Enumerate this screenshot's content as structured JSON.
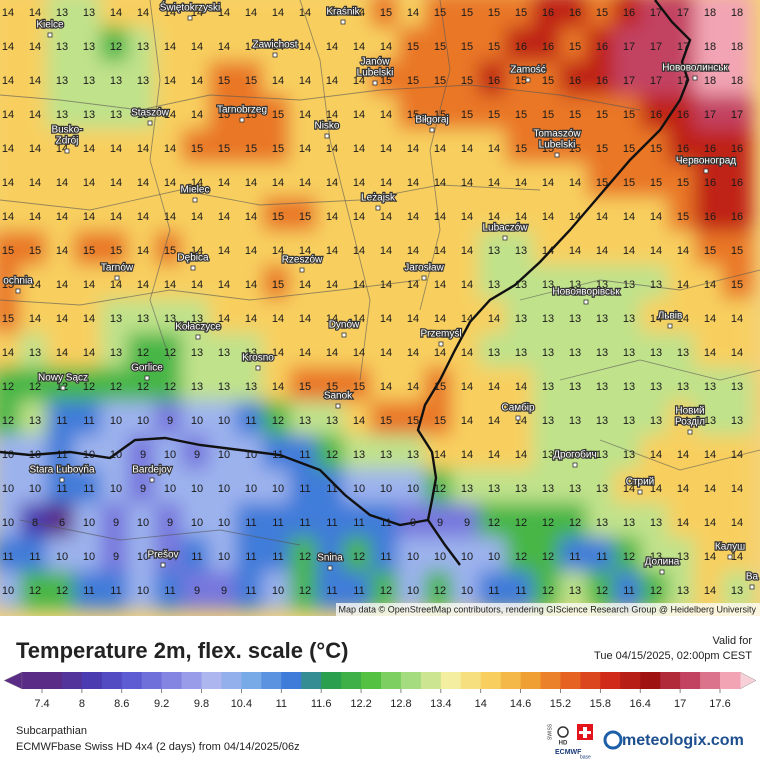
{
  "map": {
    "attribution": "Map data © OpenStreetMap contributors, rendering GIScience Research Group @ Heidelberg University",
    "grid": [
      [
        14,
        14,
        13,
        13,
        14,
        14,
        14,
        14,
        14,
        14,
        14,
        14,
        14,
        14,
        15,
        14,
        15,
        15,
        15,
        15,
        16,
        16,
        15,
        16,
        17,
        17,
        18,
        18
      ],
      [
        14,
        14,
        13,
        13,
        12,
        13,
        14,
        14,
        14,
        14,
        14,
        14,
        14,
        14,
        14,
        15,
        15,
        15,
        15,
        16,
        16,
        15,
        16,
        17,
        17,
        17,
        18,
        18
      ],
      [
        14,
        14,
        13,
        13,
        13,
        13,
        14,
        14,
        15,
        15,
        14,
        14,
        14,
        14,
        15,
        15,
        15,
        15,
        16,
        15,
        15,
        16,
        16,
        17,
        17,
        17,
        18,
        18
      ],
      [
        14,
        14,
        13,
        13,
        13,
        13,
        14,
        14,
        15,
        15,
        15,
        14,
        14,
        14,
        14,
        15,
        15,
        15,
        15,
        15,
        15,
        15,
        15,
        15,
        16,
        16,
        17,
        17
      ],
      [
        14,
        14,
        14,
        14,
        14,
        14,
        14,
        15,
        15,
        15,
        15,
        14,
        14,
        14,
        14,
        14,
        14,
        14,
        14,
        15,
        15,
        15,
        15,
        15,
        15,
        16,
        16,
        16
      ],
      [
        14,
        14,
        14,
        14,
        14,
        14,
        14,
        14,
        14,
        14,
        14,
        14,
        14,
        14,
        14,
        14,
        14,
        14,
        14,
        14,
        14,
        14,
        15,
        15,
        15,
        15,
        16,
        16
      ],
      [
        14,
        14,
        14,
        14,
        14,
        14,
        14,
        14,
        14,
        14,
        15,
        15,
        14,
        14,
        14,
        14,
        14,
        14,
        14,
        14,
        14,
        14,
        14,
        14,
        14,
        15,
        16,
        16
      ],
      [
        15,
        15,
        14,
        15,
        15,
        14,
        15,
        14,
        14,
        14,
        14,
        14,
        14,
        14,
        14,
        14,
        14,
        14,
        13,
        13,
        14,
        14,
        14,
        14,
        14,
        14,
        15,
        15
      ],
      [
        15,
        14,
        14,
        14,
        14,
        14,
        14,
        14,
        14,
        14,
        15,
        14,
        14,
        14,
        14,
        14,
        14,
        14,
        13,
        13,
        13,
        13,
        13,
        13,
        13,
        14,
        14,
        15
      ],
      [
        15,
        14,
        14,
        14,
        13,
        13,
        13,
        13,
        14,
        14,
        14,
        14,
        14,
        14,
        14,
        14,
        14,
        14,
        14,
        13,
        13,
        13,
        13,
        13,
        14,
        14,
        14,
        14
      ],
      [
        14,
        13,
        14,
        14,
        13,
        12,
        12,
        13,
        13,
        13,
        14,
        14,
        14,
        14,
        14,
        14,
        14,
        14,
        13,
        13,
        13,
        13,
        13,
        13,
        13,
        13,
        14,
        14
      ],
      [
        12,
        12,
        12,
        12,
        12,
        12,
        12,
        13,
        13,
        13,
        14,
        15,
        15,
        15,
        14,
        14,
        15,
        14,
        14,
        14,
        13,
        13,
        13,
        13,
        13,
        13,
        13,
        13
      ],
      [
        12,
        13,
        11,
        11,
        10,
        10,
        9,
        10,
        10,
        11,
        12,
        13,
        13,
        14,
        15,
        15,
        15,
        14,
        14,
        14,
        13,
        13,
        13,
        13,
        13,
        14,
        13,
        13
      ],
      [
        10,
        10,
        11,
        10,
        10,
        9,
        10,
        9,
        10,
        10,
        11,
        11,
        12,
        13,
        13,
        13,
        14,
        14,
        14,
        14,
        13,
        13,
        13,
        13,
        14,
        14,
        14,
        14
      ],
      [
        10,
        10,
        11,
        11,
        10,
        9,
        10,
        10,
        10,
        10,
        10,
        11,
        11,
        10,
        10,
        10,
        12,
        13,
        13,
        13,
        13,
        13,
        13,
        14,
        14,
        14,
        14,
        14
      ],
      [
        10,
        8,
        6,
        10,
        9,
        10,
        9,
        10,
        10,
        11,
        11,
        11,
        11,
        11,
        11,
        9,
        9,
        9,
        12,
        12,
        12,
        12,
        13,
        13,
        13,
        14,
        14,
        14
      ],
      [
        11,
        11,
        10,
        10,
        9,
        10,
        9,
        11,
        10,
        11,
        11,
        12,
        11,
        12,
        11,
        10,
        10,
        10,
        10,
        12,
        12,
        11,
        11,
        12,
        13,
        13,
        14,
        14
      ],
      [
        10,
        12,
        12,
        11,
        11,
        10,
        11,
        9,
        9,
        11,
        10,
        12,
        11,
        11,
        12,
        10,
        12,
        10,
        11,
        11,
        12,
        13,
        12,
        11,
        12,
        13,
        14,
        13
      ]
    ],
    "towns": [
      [
        "Kielce"
      ],
      [
        "Świętokrzyski"
      ],
      [
        "Kraśnik"
      ],
      [
        "Zawichost"
      ],
      [
        "Janów",
        "Lubelski"
      ],
      [
        "Zamość"
      ],
      [
        "Нововолинськ"
      ],
      [
        "Tarnobrzeg"
      ],
      [
        "Staszów"
      ],
      [
        "Busko-",
        "Zdrój"
      ],
      [
        "Nisko"
      ],
      [
        "Biłgoraj"
      ],
      [
        "Tomaszów",
        "Lubelski"
      ],
      [
        "Червоноград"
      ],
      [
        "Mielec"
      ],
      [
        "Leżajsk"
      ],
      [
        "Lubaczów"
      ],
      [
        "Tarnów"
      ],
      [
        "Dębica"
      ],
      [
        "Rzeszów"
      ],
      [
        "Jarosław"
      ],
      [
        "ochnia"
      ],
      [
        "Новояворівськ"
      ],
      [
        "Львів"
      ],
      [
        "Kołaczyce"
      ],
      [
        "Dynów"
      ],
      [
        "Przemyśl"
      ],
      [
        "Krosno"
      ],
      [
        "Gorlice"
      ],
      [
        "Nowy Sącz"
      ],
      [
        "Sanok"
      ],
      [
        "Самбір"
      ],
      [
        "Новий",
        "Розділ"
      ],
      [
        "Stara Ľubovňa"
      ],
      [
        "Bardejov"
      ],
      [
        "Дрогобич"
      ],
      [
        "Стрий"
      ],
      [
        "Prešov"
      ],
      [
        "Snina"
      ],
      [
        "Калуш"
      ],
      [
        "Долина"
      ],
      [
        "Ва"
      ]
    ]
  },
  "footer": {
    "title": "Temperature 2m, flex. scale (°C)",
    "valid_label": "Valid for",
    "valid_time": "Tue 04/15/2025, 02:00pm CEST",
    "region": "Subcarpathian",
    "model": "ECMWFbase Swiss HD 4x4 (2 days) from  04/14/2025/06z",
    "badge": [
      "SWISS",
      "HD",
      "ECMWF",
      "base"
    ],
    "brand": "meteologix.com"
  },
  "legend": {
    "ticks": [
      7.4,
      8,
      8.6,
      9.2,
      9.8,
      10.4,
      11,
      11.6,
      12.2,
      12.8,
      13.4,
      14,
      14.6,
      15.2,
      15.8,
      16.4,
      17,
      17.6
    ],
    "colors": [
      "#5b2c86",
      "#4a3bb0",
      "#5d5cd2",
      "#8484e2",
      "#aeb6f0",
      "#78aae8",
      "#3f7bd9",
      "#2a9f4e",
      "#55c142",
      "#a6dc80",
      "#f3eea0",
      "#f8cf5e",
      "#f0a032",
      "#e66222",
      "#cf2a1a",
      "#9e1212",
      "#c24262",
      "#f2a4b4"
    ]
  }
}
